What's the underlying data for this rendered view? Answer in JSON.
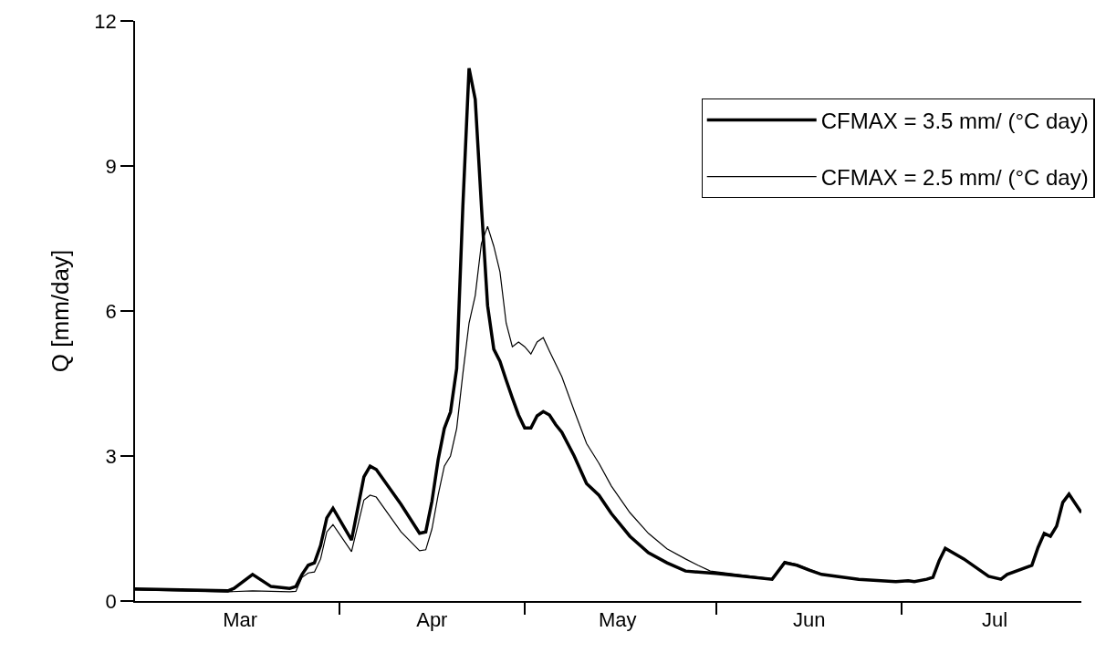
{
  "chart_data": {
    "type": "line",
    "ylabel": "Q [mm/day]",
    "xlim": [
      "--02-27",
      "--07-30"
    ],
    "ylim": [
      0,
      12
    ],
    "yticks": [
      0,
      3,
      6,
      9,
      12
    ],
    "xticks": [
      {
        "value": "--04-01",
        "label": null
      },
      {
        "value": "--05-01",
        "label": null
      },
      {
        "value": "--06-01",
        "label": null
      },
      {
        "value": "--07-01",
        "label": null
      },
      {
        "value": "--03-16",
        "label": "Mar"
      },
      {
        "value": "--04-16",
        "label": "Apr"
      },
      {
        "value": "--05-16",
        "label": "May"
      },
      {
        "value": "--06-16",
        "label": "Jun"
      },
      {
        "value": "--07-16",
        "label": "Jul"
      }
    ],
    "legend": "top right",
    "marker": "none",
    "line_style": "solid",
    "series": [
      {
        "name": "CFMAX = 3.5 mm/ (°C day)",
        "color": "#000000",
        "x": [
          "--02-27",
          "--03-14",
          "--03-15",
          "--03-18",
          "--03-21",
          "--03-24",
          "--03-25",
          "--03-26",
          "--03-27",
          "--03-28",
          "--03-29",
          "--03-30",
          "--03-31",
          "--04-03",
          "--04-05",
          "--04-06",
          "--04-07",
          "--04-11",
          "--04-14",
          "--04-15",
          "--04-16",
          "--04-17",
          "--04-18",
          "--04-19",
          "--04-20",
          "--04-21",
          "--04-22",
          "--04-23",
          "--04-24",
          "--04-25",
          "--04-26",
          "--04-27",
          "--04-28",
          "--04-29",
          "--04-30",
          "--05-01",
          "--05-02",
          "--05-03",
          "--05-04",
          "--05-05",
          "--05-06",
          "--05-07",
          "--05-09",
          "--05-11",
          "--05-13",
          "--05-15",
          "--05-18",
          "--05-21",
          "--05-24",
          "--05-27",
          "--06-01",
          "--06-10",
          "--06-12",
          "--06-14",
          "--06-16",
          "--06-18",
          "--06-24",
          "--06-30",
          "--07-02",
          "--07-03",
          "--07-05",
          "--07-06",
          "--07-07",
          "--07-08",
          "--07-11",
          "--07-15",
          "--07-17",
          "--07-18",
          "--07-22",
          "--07-23",
          "--07-24",
          "--07-25",
          "--07-26",
          "--07-27",
          "--07-28",
          "--07-30"
        ],
        "values": [
          0.25,
          0.21,
          0.26,
          0.55,
          0.3,
          0.26,
          0.3,
          0.55,
          0.74,
          0.79,
          1.15,
          1.72,
          1.92,
          1.26,
          2.57,
          2.79,
          2.72,
          2.0,
          1.4,
          1.43,
          2.06,
          2.92,
          3.57,
          3.91,
          4.81,
          8.17,
          11.02,
          10.38,
          8.17,
          6.11,
          5.21,
          4.96,
          4.57,
          4.2,
          3.85,
          3.58,
          3.58,
          3.83,
          3.92,
          3.85,
          3.65,
          3.49,
          3.0,
          2.43,
          2.19,
          1.81,
          1.34,
          1.0,
          0.79,
          0.62,
          0.57,
          0.45,
          0.79,
          0.74,
          0.64,
          0.55,
          0.45,
          0.4,
          0.42,
          0.4,
          0.45,
          0.49,
          0.83,
          1.09,
          0.87,
          0.51,
          0.45,
          0.55,
          0.74,
          1.11,
          1.4,
          1.34,
          1.55,
          2.04,
          2.21,
          1.83
        ]
      },
      {
        "name": "CFMAX = 2.5 mm/ (°C day)",
        "color": "#000000",
        "x": [
          "--02-27",
          "--03-14",
          "--03-18",
          "--03-24",
          "--03-25",
          "--03-26",
          "--03-27",
          "--03-28",
          "--03-29",
          "--03-30",
          "--03-31",
          "--04-03",
          "--04-05",
          "--04-06",
          "--04-07",
          "--04-11",
          "--04-14",
          "--04-15",
          "--04-16",
          "--04-17",
          "--04-18",
          "--04-19",
          "--04-20",
          "--04-21",
          "--04-22",
          "--04-23",
          "--04-24",
          "--04-25",
          "--04-26",
          "--04-27",
          "--04-28",
          "--04-29",
          "--04-30",
          "--05-01",
          "--05-02",
          "--05-03",
          "--05-04",
          "--05-05",
          "--05-07",
          "--05-09",
          "--05-11",
          "--05-13",
          "--05-15",
          "--05-18",
          "--05-21",
          "--05-24",
          "--05-27",
          "--05-29",
          "--05-31",
          "--06-10",
          "--06-12",
          "--06-14",
          "--06-16",
          "--06-18",
          "--06-24",
          "--06-30",
          "--07-02",
          "--07-03",
          "--07-05",
          "--07-06",
          "--07-07",
          "--07-08",
          "--07-11",
          "--07-15",
          "--07-17",
          "--07-18",
          "--07-22",
          "--07-23",
          "--07-24",
          "--07-25",
          "--07-26",
          "--07-27",
          "--07-28",
          "--07-30"
        ],
        "values": [
          0.23,
          0.19,
          0.21,
          0.19,
          0.2,
          0.49,
          0.58,
          0.6,
          0.87,
          1.43,
          1.58,
          1.02,
          2.09,
          2.19,
          2.15,
          1.43,
          1.04,
          1.06,
          1.49,
          2.19,
          2.79,
          3.0,
          3.57,
          4.7,
          5.75,
          6.32,
          7.4,
          7.75,
          7.34,
          6.81,
          5.75,
          5.26,
          5.36,
          5.26,
          5.11,
          5.36,
          5.45,
          5.17,
          4.64,
          3.94,
          3.26,
          2.85,
          2.38,
          1.83,
          1.4,
          1.08,
          0.87,
          0.74,
          0.62,
          0.46,
          0.82,
          0.76,
          0.66,
          0.56,
          0.45,
          0.4,
          0.42,
          0.4,
          0.45,
          0.49,
          0.83,
          1.09,
          0.87,
          0.51,
          0.45,
          0.55,
          0.74,
          1.11,
          1.4,
          1.34,
          1.55,
          2.04,
          2.21,
          1.83
        ]
      }
    ]
  }
}
